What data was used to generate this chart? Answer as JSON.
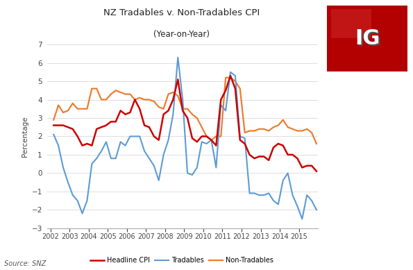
{
  "title_line1": "NZ Tradables v. Non-Tradables CPI",
  "title_line2": "(Year-on-Year)",
  "ylabel": "Percentage",
  "source": "Source: SNZ",
  "ylim": [
    -3,
    7
  ],
  "yticks": [
    -3,
    -2,
    -1,
    0,
    1,
    2,
    3,
    4,
    5,
    6,
    7
  ],
  "bg_color": "#ffffff",
  "grid_color": "#dddddd",
  "headline_color": "#cc0000",
  "tradables_color": "#5b9bd5",
  "nontradables_color": "#ed7d31",
  "x_numeric": [
    2002.17,
    2002.42,
    2002.67,
    2002.92,
    2003.17,
    2003.42,
    2003.67,
    2003.92,
    2004.17,
    2004.42,
    2004.67,
    2004.92,
    2005.17,
    2005.42,
    2005.67,
    2005.92,
    2006.17,
    2006.42,
    2006.67,
    2006.92,
    2007.17,
    2007.42,
    2007.67,
    2007.92,
    2008.17,
    2008.42,
    2008.67,
    2008.92,
    2009.17,
    2009.42,
    2009.67,
    2009.92,
    2010.17,
    2010.42,
    2010.67,
    2010.92,
    2011.17,
    2011.42,
    2011.67,
    2011.92,
    2012.17,
    2012.42,
    2012.67,
    2012.92,
    2013.17,
    2013.42,
    2013.67,
    2013.92,
    2014.17,
    2014.42,
    2014.67,
    2014.92,
    2015.17,
    2015.42,
    2015.67,
    2015.92
  ],
  "headline": [
    2.6,
    2.6,
    2.6,
    2.5,
    2.4,
    2.0,
    1.5,
    1.6,
    1.5,
    2.4,
    2.5,
    2.6,
    2.8,
    2.8,
    3.4,
    3.2,
    3.3,
    4.0,
    3.5,
    2.6,
    2.5,
    2.0,
    1.8,
    3.2,
    3.4,
    4.0,
    5.1,
    3.4,
    3.0,
    1.9,
    1.7,
    2.0,
    2.0,
    1.8,
    1.5,
    4.0,
    4.5,
    5.3,
    4.6,
    1.8,
    1.6,
    1.0,
    0.8,
    0.9,
    0.9,
    0.7,
    1.4,
    1.6,
    1.5,
    1.0,
    1.0,
    0.8,
    0.3,
    0.4,
    0.4,
    0.1
  ],
  "tradables": [
    2.1,
    1.5,
    0.3,
    -0.5,
    -1.2,
    -1.5,
    -2.2,
    -1.5,
    0.5,
    0.8,
    1.2,
    1.7,
    0.8,
    0.8,
    1.7,
    1.5,
    2.0,
    2.0,
    2.0,
    1.2,
    0.8,
    0.4,
    -0.4,
    1.0,
    1.8,
    3.2,
    6.3,
    4.0,
    0.0,
    -0.1,
    0.3,
    1.7,
    1.6,
    1.8,
    0.3,
    3.7,
    3.4,
    5.5,
    5.3,
    2.0,
    1.9,
    -1.1,
    -1.1,
    -1.2,
    -1.2,
    -1.1,
    -1.5,
    -1.7,
    -0.4,
    0.0,
    -1.2,
    -1.8,
    -2.5,
    -1.2,
    -1.5,
    -2.0
  ],
  "nontradables": [
    2.9,
    3.7,
    3.3,
    3.4,
    3.8,
    3.5,
    3.5,
    3.5,
    4.6,
    4.6,
    4.0,
    4.0,
    4.3,
    4.5,
    4.4,
    4.3,
    4.3,
    4.0,
    4.1,
    4.0,
    4.0,
    3.9,
    3.6,
    3.5,
    4.3,
    4.4,
    4.2,
    3.5,
    3.5,
    3.2,
    3.0,
    2.5,
    2.0,
    1.8,
    2.0,
    2.0,
    5.2,
    5.2,
    5.0,
    4.6,
    2.2,
    2.3,
    2.3,
    2.4,
    2.4,
    2.3,
    2.5,
    2.6,
    2.9,
    2.5,
    2.4,
    2.3,
    2.3,
    2.4,
    2.2,
    1.6
  ],
  "xlim": [
    2001.85,
    2016.0
  ],
  "xtick_years": [
    2002,
    2003,
    2004,
    2005,
    2006,
    2007,
    2008,
    2009,
    2010,
    2011,
    2012,
    2013,
    2014,
    2015
  ]
}
